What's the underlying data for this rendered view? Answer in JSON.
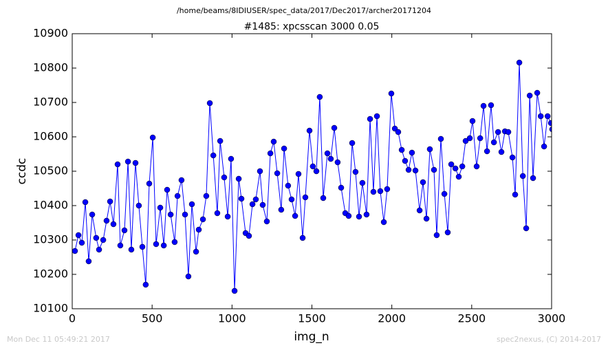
{
  "chart_data": {
    "type": "line",
    "title": "/home/beams/8IDIUSER/spec_data/2017/Dec2017/archer20171204",
    "subtitle": "#1485: xpcsscan 3000 0.05",
    "x_label": "img_n",
    "y_label": "ccdc",
    "x": [
      17,
      39,
      60,
      82,
      103,
      125,
      150,
      168,
      194,
      215,
      237,
      258,
      284,
      301,
      327,
      349,
      370,
      396,
      417,
      439,
      460,
      482,
      504,
      525,
      551,
      573,
      594,
      616,
      641,
      659,
      684,
      706,
      727,
      749,
      775,
      792,
      818,
      839,
      861,
      883,
      908,
      926,
      951,
      973,
      994,
      1016,
      1042,
      1059,
      1085,
      1106,
      1128,
      1149,
      1175,
      1192,
      1218,
      1240,
      1261,
      1283,
      1308,
      1326,
      1351,
      1373,
      1395,
      1416,
      1442,
      1459,
      1485,
      1506,
      1528,
      1549,
      1571,
      1597,
      1618,
      1640,
      1661,
      1683,
      1709,
      1730,
      1752,
      1773,
      1795,
      1816,
      1842,
      1864,
      1885,
      1907,
      1928,
      1950,
      1971,
      1997,
      2019,
      2040,
      2062,
      2083,
      2105,
      2126,
      2148,
      2174,
      2195,
      2217,
      2238,
      2264,
      2281,
      2307,
      2329,
      2350,
      2372,
      2398,
      2419,
      2441,
      2462,
      2488,
      2505,
      2531,
      2553,
      2574,
      2596,
      2621,
      2639,
      2665,
      2686,
      2708,
      2729,
      2755,
      2772,
      2798,
      2820,
      2841,
      2863,
      2884,
      2910,
      2932,
      2953,
      2975,
      2996,
      3004
    ],
    "values": [
      10268,
      10314,
      10292,
      10410,
      10238,
      10374,
      10306,
      10272,
      10300,
      10356,
      10412,
      10346,
      10520,
      10284,
      10328,
      10528,
      10272,
      10524,
      10400,
      10280,
      10170,
      10464,
      10598,
      10288,
      10394,
      10284,
      10446,
      10374,
      10294,
      10428,
      10474,
      10374,
      10194,
      10404,
      10266,
      10330,
      10360,
      10428,
      10698,
      10546,
      10378,
      10588,
      10482,
      10368,
      10536,
      10152,
      10478,
      10420,
      10320,
      10312,
      10404,
      10418,
      10500,
      10402,
      10354,
      10552,
      10586,
      10494,
      10388,
      10566,
      10458,
      10418,
      10370,
      10492,
      10306,
      10424,
      10618,
      10514,
      10500,
      10716,
      10422,
      10552,
      10536,
      10626,
      10526,
      10452,
      10378,
      10370,
      10582,
      10498,
      10368,
      10466,
      10374,
      10652,
      10440,
      10660,
      10442,
      10352,
      10448,
      10726,
      10624,
      10614,
      10562,
      10530,
      10504,
      10554,
      10502,
      10386,
      10468,
      10362,
      10564,
      10504,
      10314,
      10594,
      10434,
      10322,
      10520,
      10508,
      10484,
      10514,
      10588,
      10596,
      10646,
      10514,
      10596,
      10690,
      10558,
      10692,
      10584,
      10614,
      10556,
      10616,
      10614,
      10540,
      10432,
      10816,
      10486,
      10334,
      10720,
      10480,
      10728,
      10660,
      10572,
      10660,
      10640,
      10622
    ],
    "color": "#0000ff",
    "xlim": [
      0,
      3000
    ],
    "xticks": [
      0,
      500,
      1000,
      1500,
      2000,
      2500,
      3000
    ],
    "ylim": [
      10100,
      10900
    ],
    "yticks": [
      10100,
      10200,
      10300,
      10400,
      10500,
      10600,
      10700,
      10800,
      10900
    ]
  },
  "footer": {
    "left": "Mon Dec 11 05:49:21 2017",
    "right": "spec2nexus, (C) 2014-2017"
  }
}
